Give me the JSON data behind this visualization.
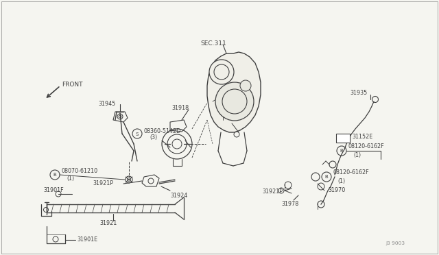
{
  "bg_color": "#f5f5f0",
  "line_color": "#404040",
  "text_color": "#404040",
  "fig_width": 6.4,
  "fig_height": 3.72,
  "dpi": 100,
  "watermark": "J3 9003",
  "front_label": "FRONT",
  "sec_label": "SEC.311",
  "border_color": "#aaaaaa"
}
